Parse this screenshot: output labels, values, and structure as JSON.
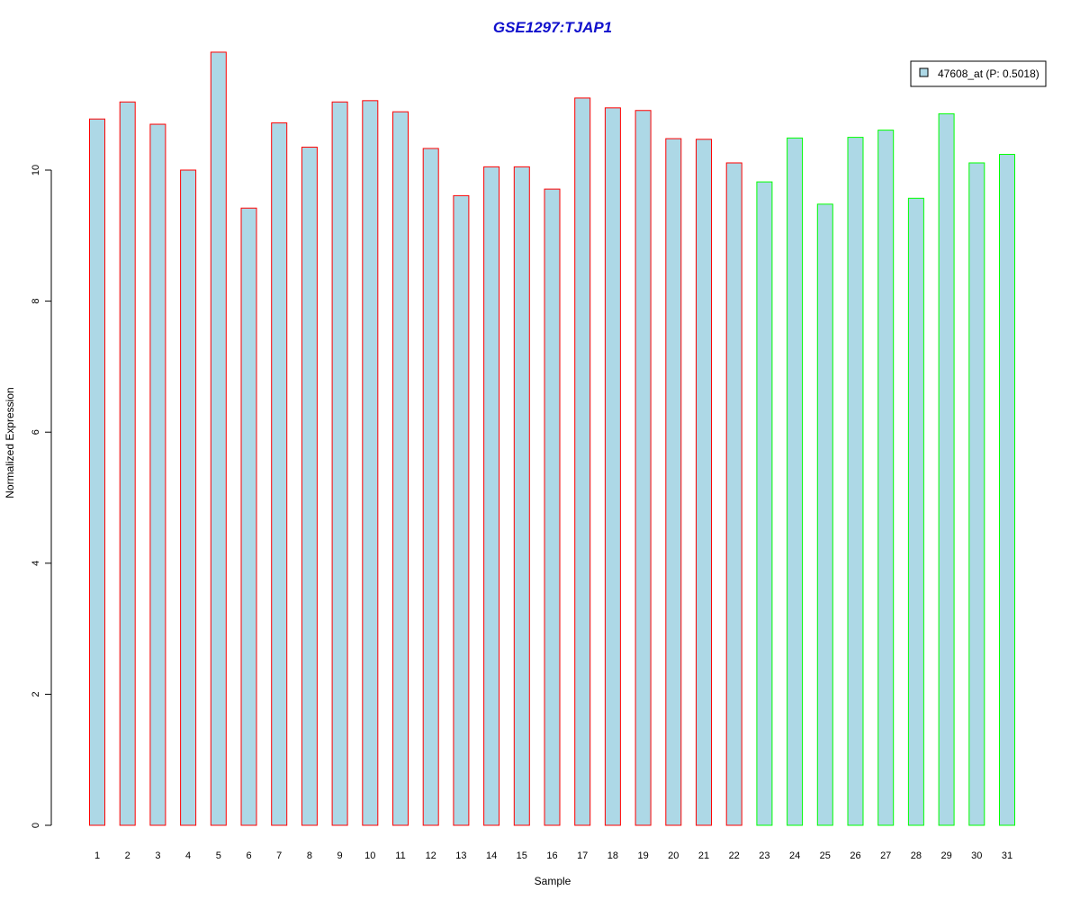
{
  "chart_data": {
    "type": "bar",
    "title": "GSE1297:TJAP1",
    "xlabel": "Sample",
    "ylabel": "Normalized Expression",
    "categories": [
      "1",
      "2",
      "3",
      "4",
      "5",
      "6",
      "7",
      "8",
      "9",
      "10",
      "11",
      "12",
      "13",
      "14",
      "15",
      "16",
      "17",
      "18",
      "19",
      "20",
      "21",
      "22",
      "23",
      "24",
      "25",
      "26",
      "27",
      "28",
      "29",
      "30",
      "31"
    ],
    "values": [
      10.78,
      11.04,
      10.7,
      10.0,
      11.8,
      9.42,
      10.72,
      10.35,
      11.04,
      11.06,
      10.89,
      10.33,
      9.61,
      10.05,
      10.05,
      9.71,
      11.1,
      10.95,
      10.91,
      10.48,
      10.47,
      10.11,
      9.82,
      10.49,
      9.48,
      10.5,
      10.61,
      9.57,
      10.86,
      10.11,
      10.24
    ],
    "group": [
      "red",
      "red",
      "red",
      "red",
      "red",
      "red",
      "red",
      "red",
      "red",
      "red",
      "red",
      "red",
      "red",
      "red",
      "red",
      "red",
      "red",
      "red",
      "red",
      "red",
      "red",
      "red",
      "green",
      "green",
      "green",
      "green",
      "green",
      "green",
      "green",
      "green",
      "green"
    ],
    "y_ticks": [
      "0",
      "2",
      "4",
      "6",
      "8",
      "10"
    ],
    "ylim": [
      0,
      11.8
    ],
    "legend": {
      "label": "47608_at (P: 0.5018)",
      "position": "top-right"
    },
    "grid": false
  },
  "colors": {
    "title": "#1010cc",
    "bar_fill": "#add8e6",
    "border_red": "#ff0000",
    "border_green": "#00ff00"
  }
}
